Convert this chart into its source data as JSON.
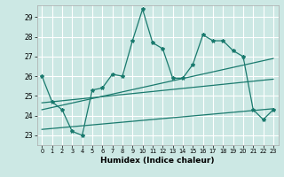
{
  "title": "",
  "xlabel": "Humidex (Indice chaleur)",
  "ylabel": "",
  "xlim": [
    -0.5,
    23.5
  ],
  "ylim": [
    22.5,
    29.6
  ],
  "yticks": [
    23,
    24,
    25,
    26,
    27,
    28,
    29
  ],
  "xticks": [
    0,
    1,
    2,
    3,
    4,
    5,
    6,
    7,
    8,
    9,
    10,
    11,
    12,
    13,
    14,
    15,
    16,
    17,
    18,
    19,
    20,
    21,
    22,
    23
  ],
  "bg_color": "#cce8e4",
  "grid_color": "#ffffff",
  "line_color": "#1a7a6e",
  "line1_x": [
    0,
    1,
    2,
    3,
    4,
    5,
    6,
    7,
    8,
    9,
    10,
    11,
    12,
    13,
    14,
    15,
    16,
    17,
    18,
    19,
    20,
    21,
    22,
    23
  ],
  "line1_y": [
    26.0,
    24.7,
    24.3,
    23.2,
    23.0,
    25.3,
    25.4,
    26.1,
    26.0,
    27.8,
    29.4,
    27.7,
    27.4,
    25.9,
    25.9,
    26.6,
    28.1,
    27.8,
    27.8,
    27.3,
    27.0,
    24.3,
    23.8,
    24.3
  ],
  "line2_x": [
    0,
    23
  ],
  "line2_y": [
    24.3,
    26.9
  ],
  "line3_x": [
    0,
    23
  ],
  "line3_y": [
    24.65,
    25.85
  ],
  "line4_x": [
    0,
    23
  ],
  "line4_y": [
    23.3,
    24.35
  ]
}
